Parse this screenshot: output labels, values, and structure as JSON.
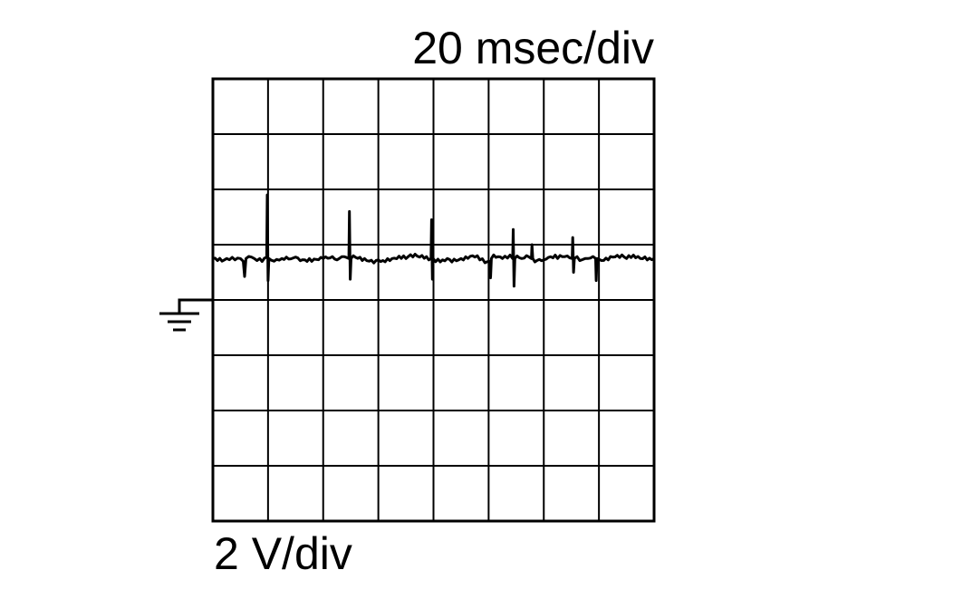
{
  "chart_data": {
    "type": "line",
    "title": "",
    "xlabel": "20 msec/div",
    "ylabel": "2 V/div",
    "x_unit": "ms",
    "y_unit": "V",
    "xlim": [
      0,
      160
    ],
    "ylim": [
      -8,
      8
    ],
    "x_divisions": 8,
    "y_divisions": 8,
    "grid": true,
    "ground_marker": {
      "icon": "ground-icon",
      "value": 0
    },
    "line_color": "#000000",
    "series": [
      {
        "points": [
          [
            0,
            1.5
          ],
          [
            5,
            1.5
          ],
          [
            8,
            1.45
          ],
          [
            10,
            1.5
          ],
          [
            11,
            1.4
          ],
          [
            11.5,
            0.85
          ],
          [
            12,
            1.5
          ],
          [
            15,
            1.5
          ],
          [
            17,
            1.5
          ],
          [
            19.5,
            1.55
          ],
          [
            19.7,
            3.8
          ],
          [
            20,
            0.7
          ],
          [
            20.3,
            1.5
          ],
          [
            25,
            1.5
          ],
          [
            30,
            1.55
          ],
          [
            35,
            1.5
          ],
          [
            40,
            1.5
          ],
          [
            45,
            1.45
          ],
          [
            49.3,
            1.5
          ],
          [
            49.5,
            3.2
          ],
          [
            49.8,
            0.75
          ],
          [
            50.1,
            1.5
          ],
          [
            55,
            1.5
          ],
          [
            60,
            1.45
          ],
          [
            65,
            1.5
          ],
          [
            70,
            1.5
          ],
          [
            75,
            1.55
          ],
          [
            79.1,
            1.5
          ],
          [
            79.3,
            2.9
          ],
          [
            79.6,
            0.75
          ],
          [
            79.9,
            1.5
          ],
          [
            85,
            1.5
          ],
          [
            90,
            1.5
          ],
          [
            95,
            1.55
          ],
          [
            100.5,
            1.4
          ],
          [
            100.7,
            0.8
          ],
          [
            101,
            1.5
          ],
          [
            105,
            1.5
          ],
          [
            108.7,
            1.5
          ],
          [
            108.9,
            2.55
          ],
          [
            109.2,
            0.5
          ],
          [
            109.5,
            1.5
          ],
          [
            112,
            1.5
          ],
          [
            115.5,
            1.5
          ],
          [
            115.7,
            2.0
          ],
          [
            116,
            1.5
          ],
          [
            120,
            1.45
          ],
          [
            125,
            1.5
          ],
          [
            130.3,
            1.5
          ],
          [
            130.5,
            2.26
          ],
          [
            130.8,
            1.0
          ],
          [
            131.1,
            1.5
          ],
          [
            135,
            1.5
          ],
          [
            138.8,
            1.5
          ],
          [
            139,
            0.7
          ],
          [
            139.3,
            1.5
          ],
          [
            145,
            1.55
          ],
          [
            150,
            1.5
          ],
          [
            155,
            1.5
          ],
          [
            160,
            1.5
          ]
        ]
      }
    ]
  }
}
